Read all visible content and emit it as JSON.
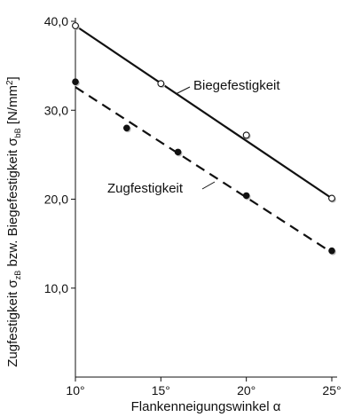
{
  "chart_data": {
    "type": "scatter",
    "xlabel": "Flankenneigungswinkel α",
    "ylabel": {
      "part1": "Zugfestigkeit σ",
      "sub1": "zB",
      "part2": " bzw. Biegefestigkeit σ",
      "sub2": "bB",
      "part3": " [N/mm",
      "sup": "2",
      "part4": "]"
    },
    "xlim": [
      10,
      25
    ],
    "ylim": [
      0,
      40
    ],
    "x_ticks": [
      10,
      15,
      20,
      25
    ],
    "x_tick_labels": [
      "10°",
      "15°",
      "20°",
      "25°"
    ],
    "y_ticks": [
      10,
      20,
      30,
      40
    ],
    "y_tick_labels": [
      "10,0",
      "20,0",
      "30,0",
      "40,0"
    ],
    "grid": false,
    "series": [
      {
        "name": "Biegefestigkeit",
        "marker": "open-circle",
        "line_style": "solid",
        "points": [
          {
            "x": 10,
            "y": 39.5
          },
          {
            "x": 15,
            "y": 33.0
          },
          {
            "x": 20,
            "y": 27.2
          },
          {
            "x": 25,
            "y": 20.1
          }
        ],
        "trend": [
          {
            "x": 10,
            "y": 39.5
          },
          {
            "x": 25,
            "y": 20.1
          }
        ]
      },
      {
        "name": "Zugfestigkeit",
        "marker": "filled-circle",
        "line_style": "dashed",
        "points": [
          {
            "x": 10,
            "y": 33.2
          },
          {
            "x": 13,
            "y": 28.0
          },
          {
            "x": 16,
            "y": 25.3
          },
          {
            "x": 20,
            "y": 20.4
          },
          {
            "x": 25,
            "y": 14.2
          }
        ],
        "trend": [
          {
            "x": 10,
            "y": 32.6
          },
          {
            "x": 25,
            "y": 14.0
          }
        ]
      }
    ],
    "annotations": [
      {
        "text": "Biegefestigkeit",
        "series": "Biegefestigkeit"
      },
      {
        "text": "Zugfestigkeit",
        "series": "Zugfestigkeit"
      }
    ],
    "colors": {
      "axis": "#111111",
      "line": "#111111",
      "marker_fill": "#111111",
      "open_marker_fill": "#ffffff",
      "marker_shadow": "#bbbbbb"
    }
  }
}
